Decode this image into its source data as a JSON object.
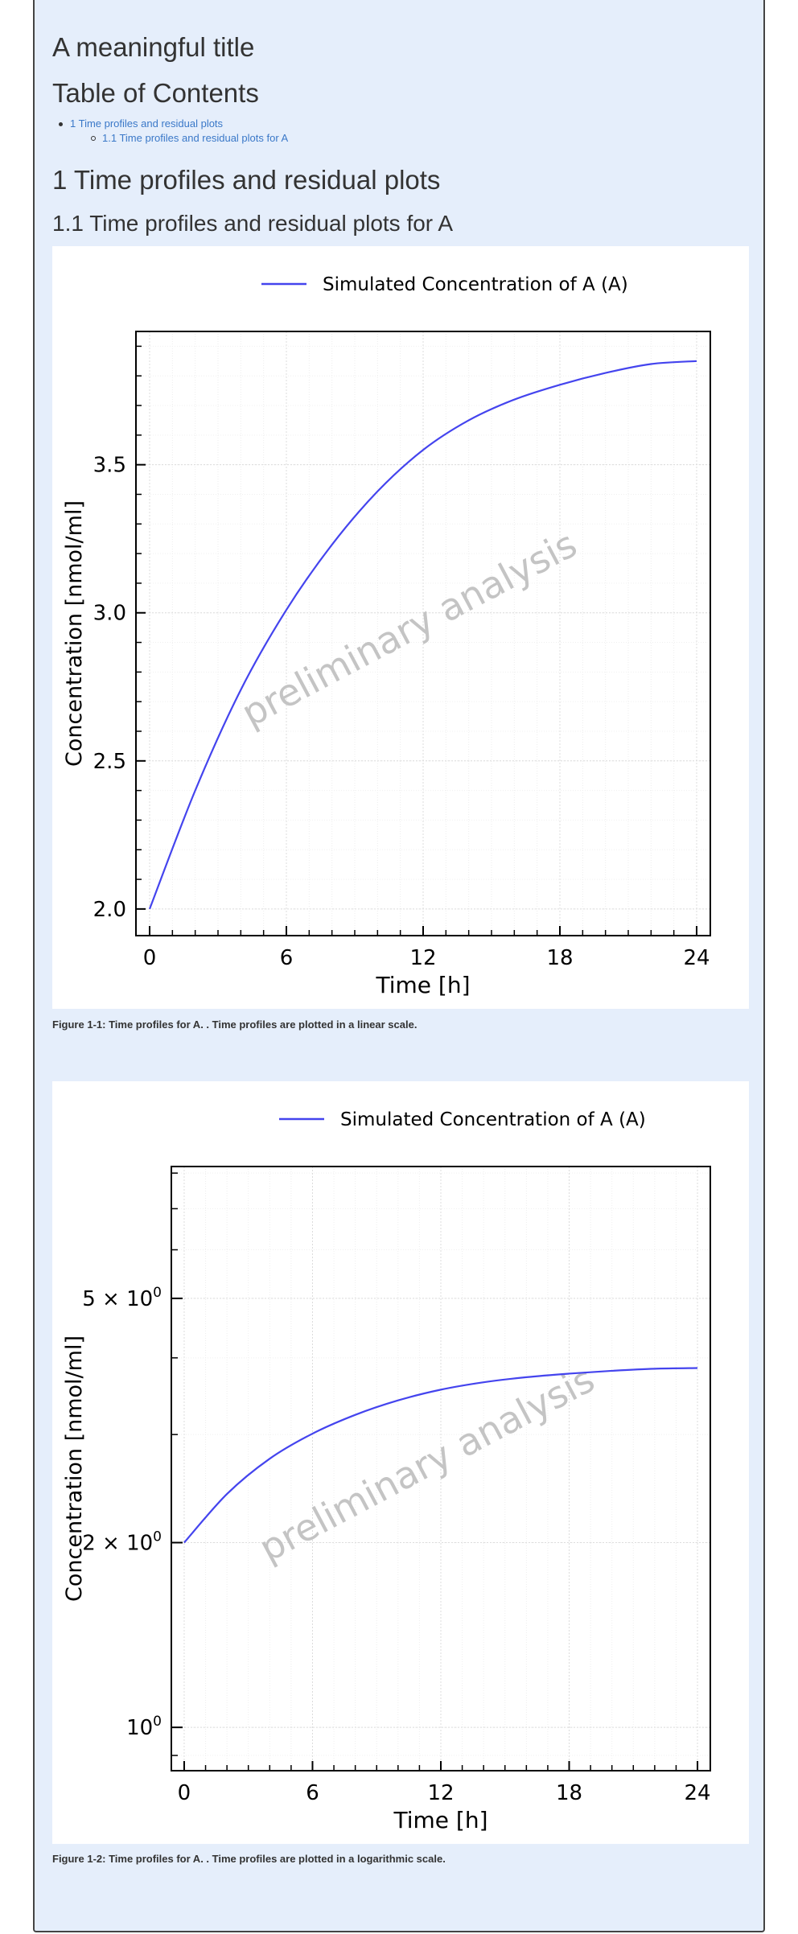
{
  "document": {
    "title": "A meaningful title",
    "toc_title": "Table of Contents",
    "toc": [
      {
        "label": "1 Time profiles and residual plots"
      },
      {
        "label": "1.1 Time profiles and residual plots for A"
      }
    ],
    "section_heading": "1 Time profiles and residual plots",
    "subsection_heading": "1.1 Time profiles and residual plots for A"
  },
  "figures": [
    {
      "caption": "Figure 1-1: Time profiles for A. . Time profiles are plotted in a linear scale."
    },
    {
      "caption": "Figure 1-2: Time profiles for A. . Time profiles are plotted in a logarithmic scale."
    }
  ],
  "chart_data": [
    {
      "type": "line",
      "scale": "linear",
      "legend": "top-center",
      "grid": true,
      "watermark": "preliminary analysis",
      "xlabel": "Time [h]",
      "ylabel": "Concentration [nmol/ml]",
      "xlim": [
        -0.6,
        24.6
      ],
      "ylim": [
        1.91,
        3.95
      ],
      "xticks": [
        0,
        6,
        12,
        18,
        24
      ],
      "yticks": [
        2.0,
        2.5,
        3.0,
        3.5
      ],
      "ytick_labels": [
        "2.0",
        "2.5",
        "3.0",
        "3.5"
      ],
      "series": [
        {
          "name": "Simulated Concentration of A (A)",
          "color": "#4444ee",
          "x": [
            0,
            2,
            4,
            6,
            8,
            10,
            12,
            14,
            16,
            18,
            20,
            22,
            24
          ],
          "y": [
            2.0,
            2.4,
            2.74,
            3.01,
            3.23,
            3.41,
            3.55,
            3.65,
            3.72,
            3.77,
            3.81,
            3.84,
            3.85
          ]
        }
      ]
    },
    {
      "type": "line",
      "scale": "log",
      "legend": "top-center",
      "grid": true,
      "watermark": "preliminary analysis",
      "xlabel": "Time [h]",
      "ylabel": "Concentration [nmol/ml]",
      "xlim": [
        -0.6,
        24.6
      ],
      "ylim": [
        0.85,
        8.2
      ],
      "xticks": [
        0,
        6,
        12,
        18,
        24
      ],
      "yticks": [
        1,
        2,
        5
      ],
      "ytick_labels": [
        {
          "base": "10",
          "exp": "0"
        },
        {
          "base": "2 × 10",
          "exp": "0"
        },
        {
          "base": "5 × 10",
          "exp": "0"
        }
      ],
      "series": [
        {
          "name": "Simulated Concentration of A (A)",
          "color": "#4444ee",
          "x": [
            0,
            2,
            4,
            6,
            8,
            10,
            12,
            14,
            16,
            18,
            20,
            22,
            24
          ],
          "y": [
            2.0,
            2.4,
            2.74,
            3.01,
            3.23,
            3.41,
            3.55,
            3.65,
            3.72,
            3.77,
            3.81,
            3.84,
            3.85
          ]
        }
      ]
    }
  ]
}
